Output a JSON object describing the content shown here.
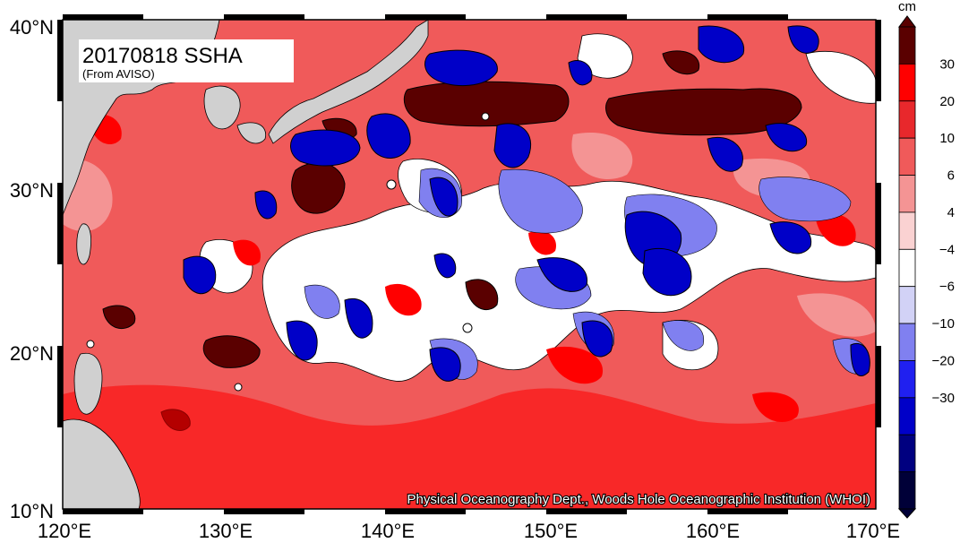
{
  "map": {
    "title": "20170818 SSHA",
    "subtitle": "(From AVISO)",
    "credit": "Physical Oceanography Dept., Woods Hole Oceanographic Institution (WHOI)",
    "lon_range": [
      120,
      170
    ],
    "lat_range": [
      10,
      40
    ],
    "lon_labels": [
      "120°E",
      "130°E",
      "140°E",
      "150°E",
      "160°E",
      "170°E"
    ],
    "lat_labels": [
      "10°N",
      "20°N",
      "30°N",
      "40°N"
    ]
  },
  "colorbar": {
    "unit": "cm",
    "labels": [
      "30",
      "20",
      "10",
      "6",
      "4",
      "−4",
      "−6",
      "−10",
      "−20",
      "−30"
    ],
    "colors": [
      "#5a0000",
      "#ff0000",
      "#e8282c",
      "#f05a5a",
      "#f49494",
      "#fad2d2",
      "#ffffff",
      "#d2d2f6",
      "#8080f0",
      "#2020f0",
      "#0000c8",
      "#000080",
      "#000038"
    ]
  },
  "colors": {
    "land": "#d0d0d0",
    "ocean_base": "#f05a5a",
    "warm_dark": "#5a0000",
    "warm": "#ff0000",
    "cold": "#0000c8",
    "cold_light": "#8080f0",
    "neutral": "#ffffff"
  }
}
